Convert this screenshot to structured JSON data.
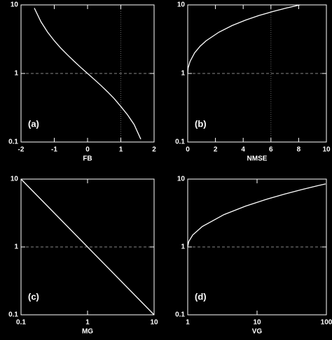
{
  "chart_data": [
    {
      "type": "line",
      "label": "(a)",
      "xlabel": "FB",
      "x": [
        -1.6,
        -1.4,
        -1.2,
        -1.0,
        -0.8,
        -0.6,
        -0.4,
        -0.2,
        0,
        0.2,
        0.4,
        0.6,
        0.8,
        1.0,
        1.2,
        1.4,
        1.6
      ],
      "series": [
        {
          "color": "#ffffff",
          "values": [
            9,
            5.67,
            4,
            3,
            2.33,
            1.86,
            1.5,
            1.22,
            1,
            0.82,
            0.67,
            0.54,
            0.43,
            0.33,
            0.25,
            0.18,
            0.11
          ]
        }
      ],
      "xlim": [
        -2,
        2
      ],
      "xticks": [
        -2,
        -1,
        0,
        1,
        2
      ],
      "ylim": [
        0.1,
        10
      ],
      "yticks": [
        0.1,
        1,
        10
      ],
      "ylog": true,
      "xlog": false,
      "hline": 1,
      "vline": 1
    },
    {
      "type": "line",
      "label": "(b)",
      "xlabel": "NMSE",
      "x": [
        0,
        0.03,
        0.17,
        0.5,
        0.9,
        1.33,
        2.25,
        3.2,
        4.17,
        5.14,
        6.13,
        7.11,
        8.1
      ],
      "series": [
        {
          "color": "#ffffff",
          "values": [
            1,
            1.2,
            1.5,
            2,
            2.5,
            3,
            4,
            5,
            6,
            7,
            8,
            9,
            10
          ]
        }
      ],
      "xlim": [
        0,
        10
      ],
      "xticks": [
        0,
        2,
        4,
        6,
        8,
        10
      ],
      "ylim": [
        0.1,
        10
      ],
      "yticks": [
        0.1,
        1,
        10
      ],
      "ylog": true,
      "xlog": false,
      "hline": 1,
      "vline": 6
    },
    {
      "type": "line",
      "label": "(c)",
      "xlabel": "MG",
      "x": [
        0.1,
        10
      ],
      "series": [
        {
          "color": "#ffffff",
          "values": [
            10,
            0.1
          ]
        }
      ],
      "xlim": [
        0.1,
        10
      ],
      "xticks": [
        0.1,
        1,
        10
      ],
      "ylim": [
        0.1,
        10
      ],
      "yticks": [
        0.1,
        1,
        10
      ],
      "ylog": true,
      "xlog": true,
      "hline": 1
    },
    {
      "type": "line",
      "label": "(d)",
      "xlabel": "VG",
      "x": [
        1,
        1.034,
        1.18,
        1.62,
        3.34,
        6.83,
        13.3,
        24.8,
        44.1,
        75.4,
        97.6
      ],
      "series": [
        {
          "color": "#ffffff",
          "values": [
            1,
            1.2,
            1.5,
            2,
            3,
            4,
            5,
            6,
            7,
            8,
            8.5
          ]
        }
      ],
      "xlim": [
        1,
        100
      ],
      "xticks": [
        1,
        10,
        100
      ],
      "ylim": [
        0.1,
        10
      ],
      "yticks": [
        0.1,
        1,
        10
      ],
      "ylog": true,
      "xlog": true,
      "hline": 1
    }
  ]
}
